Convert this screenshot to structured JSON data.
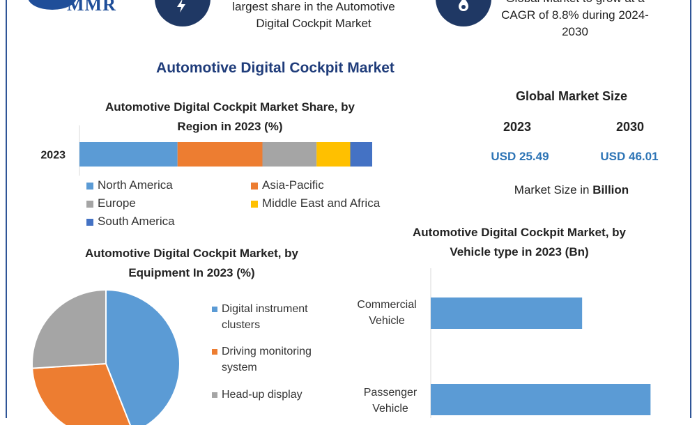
{
  "header": {
    "logo_text": "MMR",
    "left_caption": "largest share in the Automotive Digital Cockpit Market",
    "left_caption_line1": "largest share in the Automotive",
    "left_caption_line2": "Digital Cockpit Market",
    "right_caption_line0": "Global Market to grow at a",
    "right_caption_line1": "CAGR of 8.8% during 2024-",
    "right_caption_line2": "2030",
    "left_icon": "lightning-icon",
    "right_icon": "flame-icon"
  },
  "main_title": "Automotive Digital Cockpit Market",
  "global_market": {
    "title": "Global Market Size",
    "year_a": "2023",
    "year_b": "2030",
    "value_a": "USD 25.49",
    "value_b": "USD 46.01",
    "unit_prefix": "Market Size in ",
    "unit_bold": "Billion"
  },
  "colors": {
    "north_america": "#5b9bd5",
    "asia_pacific": "#ed7d31",
    "europe": "#a5a5a5",
    "mea": "#ffc000",
    "south_america": "#4472c4",
    "title_blue": "#1f3c7a",
    "value_blue": "#2e75b6"
  },
  "chart_data": [
    {
      "type": "bar",
      "orientation": "horizontal-stacked",
      "title_line1": "Automotive Digital Cockpit Market Share, by",
      "title_line2": "Region in 2023 (%)",
      "categories": [
        "2023"
      ],
      "series": [
        {
          "name": "North America",
          "values": [
            33.5
          ]
        },
        {
          "name": "Asia-Pacific",
          "values": [
            29
          ]
        },
        {
          "name": "Europe",
          "values": [
            18.5
          ]
        },
        {
          "name": "Middle East and Africa",
          "values": [
            11.5
          ]
        },
        {
          "name": "South America",
          "values": [
            7.5
          ]
        }
      ],
      "xlim": [
        0,
        100
      ],
      "legend": "bottom"
    },
    {
      "type": "pie",
      "title_line1": "Automotive Digital Cockpit Market, by",
      "title_line2": "Equipment In 2023 (%)",
      "labels": [
        "Digital instrument clusters",
        "Driving monitoring system",
        "Head-up display"
      ],
      "legend_lines": [
        [
          "Digital instrument",
          "clusters"
        ],
        [
          "Driving monitoring",
          "system"
        ],
        [
          "Head-up display"
        ]
      ],
      "values": [
        44,
        30,
        26
      ],
      "colors": [
        "#5b9bd5",
        "#ed7d31",
        "#a5a5a5"
      ],
      "legend": "right"
    },
    {
      "type": "bar",
      "orientation": "horizontal",
      "title_line1": "Automotive Digital Cockpit Market, by",
      "title_line2": "Vehicle type in 2023 (Bn)",
      "categories": [
        "Commercial Vehicle",
        "Passenger Vehicle"
      ],
      "category_lines": [
        [
          "Commercial",
          "Vehicle"
        ],
        [
          "Passenger",
          "Vehicle"
        ]
      ],
      "values": [
        7.3,
        10.6
      ],
      "color": "#5b9bd5",
      "xlim": [
        0,
        12
      ]
    }
  ]
}
